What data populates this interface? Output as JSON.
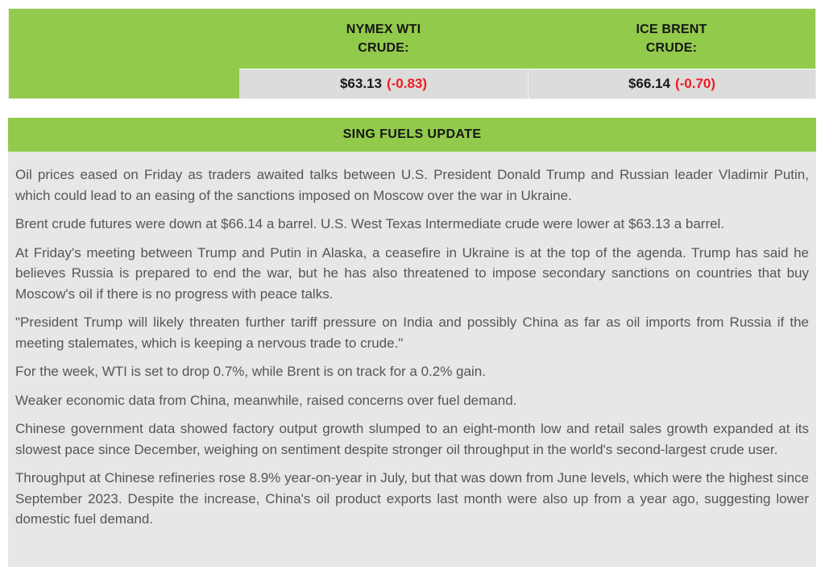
{
  "price_table": {
    "columns": [
      {
        "header_line1": "NYMEX WTI",
        "header_line2": "CRUDE:",
        "price": "$63.13",
        "change": "(-0.83)"
      },
      {
        "header_line1": "ICE BRENT",
        "header_line2": "CRUDE:",
        "price": "$66.14",
        "change": "(-0.70)"
      }
    ]
  },
  "update": {
    "title": "SING FUELS UPDATE",
    "paragraphs": [
      "Oil prices eased on Friday as traders awaited talks between U.S. President Donald Trump and Russian leader Vladimir Putin, which could lead to an easing of the sanctions imposed on Moscow over the war in Ukraine.",
      "Brent crude futures were down at $66.14 a barrel. U.S. West Texas Intermediate crude were lower at $63.13 a barrel.",
      "At Friday's meeting between Trump and Putin in Alaska, a ceasefire in Ukraine is at the top of the agenda. Trump has said he believes Russia is prepared to end the war, but he has also threatened to impose secondary sanctions on countries that buy Moscow's oil if there is no progress with peace talks.",
      "\"President Trump will likely threaten further tariff pressure on India and possibly China as far as oil imports from Russia if the meeting stalemates, which is keeping a nervous trade to crude.\"",
      "For the week, WTI is set to drop 0.7%, while Brent is on track for a 0.2% gain.",
      "Weaker economic data from China, meanwhile, raised concerns over fuel demand.",
      "Chinese government data showed factory output growth slumped to an eight-month low and retail sales growth expanded at its slowest pace since December, weighing on sentiment despite stronger oil throughput in the world's second-largest crude user.",
      "Throughput at Chinese refineries rose 8.9% year-on-year in July, but that was down from June levels, which were the highest since September 2023. Despite the increase, China's oil product exports last month were also up from a year ago, suggesting lower domestic fuel demand."
    ]
  },
  "colors": {
    "green": "#92ca4b",
    "cell_gray": "#dcdcdc",
    "body_gray": "#e7e7e7",
    "price_red": "#ee1b23",
    "text_dark": "#565656",
    "heading_black": "#161616"
  }
}
